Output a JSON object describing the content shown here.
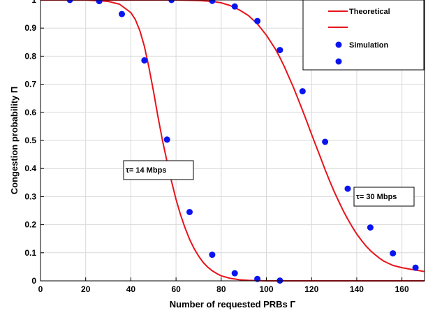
{
  "chart_data": {
    "type": "line",
    "xlabel": "Number of requested PRBs Γ",
    "ylabel": "Congestion probability Π",
    "xlim": [
      0,
      170
    ],
    "ylim": [
      0,
      1
    ],
    "xticks": [
      0,
      20,
      40,
      60,
      80,
      100,
      120,
      140,
      160
    ],
    "yticks": [
      0,
      0.1,
      0.2,
      0.3,
      0.4,
      0.5,
      0.6,
      0.7,
      0.8,
      0.9,
      1
    ],
    "xtick_labels": [
      "0",
      "20",
      "40",
      "60",
      "80",
      "100",
      "120",
      "140",
      "160"
    ],
    "ytick_labels": [
      "0",
      "0.1",
      "0.2",
      "0.3",
      "0.4",
      "0.5",
      "0.6",
      "0.7",
      "0.8",
      "0.9",
      "1"
    ],
    "grid": true,
    "legend_position": "top-right",
    "legend": [
      {
        "label": "Theoretical",
        "marker": "line",
        "color": "#e8141c"
      },
      {
        "label": "",
        "marker": "line",
        "color": "#e8141c"
      },
      {
        "label": "Simulation",
        "marker": "dot",
        "color": "#0a14f0"
      },
      {
        "label": "",
        "marker": "dot",
        "color": "#0a14f0"
      }
    ],
    "series": [
      {
        "kind": "theoretical",
        "color": "#e8141c",
        "x": [
          0,
          20,
          30,
          35,
          40,
          42,
          44,
          46,
          48,
          50,
          52,
          54,
          56,
          58,
          60,
          62,
          64,
          66,
          68,
          70,
          72,
          74,
          76,
          78,
          80,
          84,
          88,
          92,
          96,
          100,
          110,
          120,
          140,
          170
        ],
        "y": [
          1,
          1,
          0.995,
          0.985,
          0.955,
          0.93,
          0.89,
          0.835,
          0.76,
          0.675,
          0.585,
          0.5,
          0.425,
          0.355,
          0.29,
          0.235,
          0.188,
          0.148,
          0.115,
          0.088,
          0.066,
          0.049,
          0.036,
          0.026,
          0.018,
          0.009,
          0.004,
          0.002,
          0.001,
          0,
          0,
          0,
          0,
          0
        ]
      },
      {
        "kind": "theoretical",
        "color": "#e8141c",
        "x": [
          0,
          40,
          60,
          70,
          76,
          80,
          84,
          88,
          92,
          96,
          100,
          104,
          106,
          108,
          110,
          112,
          114,
          116,
          118,
          120,
          122,
          124,
          126,
          128,
          130,
          132,
          134,
          136,
          138,
          140,
          142,
          144,
          146,
          148,
          150,
          152,
          156,
          160,
          164,
          168,
          170
        ],
        "y": [
          1,
          1,
          1,
          0.998,
          0.995,
          0.99,
          0.98,
          0.965,
          0.945,
          0.915,
          0.875,
          0.825,
          0.795,
          0.762,
          0.725,
          0.688,
          0.648,
          0.607,
          0.565,
          0.522,
          0.48,
          0.438,
          0.396,
          0.356,
          0.318,
          0.283,
          0.25,
          0.22,
          0.192,
          0.167,
          0.145,
          0.125,
          0.108,
          0.094,
          0.081,
          0.07,
          0.055,
          0.047,
          0.041,
          0.036,
          0.033
        ]
      },
      {
        "kind": "simulation",
        "color": "#0a14f0",
        "x": [
          13,
          26,
          36,
          46,
          56,
          66,
          76,
          86,
          96,
          106
        ],
        "y": [
          1,
          0.996,
          0.95,
          0.785,
          0.503,
          0.245,
          0.093,
          0.027,
          0.007,
          0.001
        ]
      },
      {
        "kind": "simulation",
        "color": "#0a14f0",
        "x": [
          58,
          76,
          86,
          96,
          106,
          116,
          126,
          136,
          146,
          156,
          166
        ],
        "y": [
          1,
          0.997,
          0.977,
          0.925,
          0.822,
          0.675,
          0.495,
          0.328,
          0.19,
          0.098,
          0.047
        ]
      }
    ],
    "annotations": [
      {
        "label": "τ= 14 Mbps"
      },
      {
        "label": "τ= 30 Mbps"
      }
    ]
  }
}
